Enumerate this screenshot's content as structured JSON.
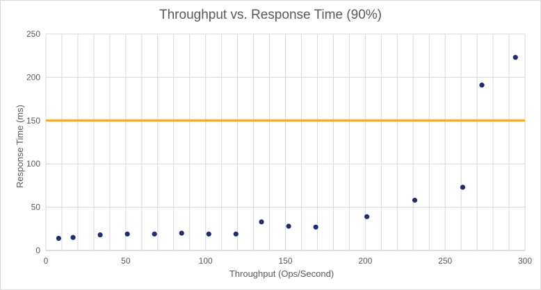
{
  "chart_data": {
    "type": "scatter",
    "title": "Throughput vs. Response Time (90%)",
    "xlabel": "Throughput  (Ops/Second)",
    "ylabel": "Response Time (ms)",
    "xlim": [
      0,
      300
    ],
    "ylim": [
      0,
      250
    ],
    "xticks": [
      0,
      50,
      100,
      150,
      200,
      250,
      300
    ],
    "yticks": [
      0,
      50,
      100,
      150,
      200,
      250
    ],
    "vertical_grid_step": 10,
    "grid": true,
    "legend": "none",
    "series": [
      {
        "x": [
          8,
          17,
          34,
          51,
          68,
          85,
          102,
          119,
          135,
          152,
          169,
          201,
          231,
          261,
          273,
          294
        ],
        "y": [
          14,
          15,
          18,
          19,
          19,
          20,
          19,
          19,
          33,
          28,
          27,
          39,
          58,
          73,
          191,
          223
        ],
        "color": "#1f2d6b"
      }
    ],
    "threshold_line": {
      "y": 150,
      "color": "#f5a623"
    }
  },
  "colors": {
    "gridline": "#d9d9d9",
    "axis": "#bfbfbf",
    "marker": "#1f2d6b",
    "threshold": "#f5a623"
  }
}
